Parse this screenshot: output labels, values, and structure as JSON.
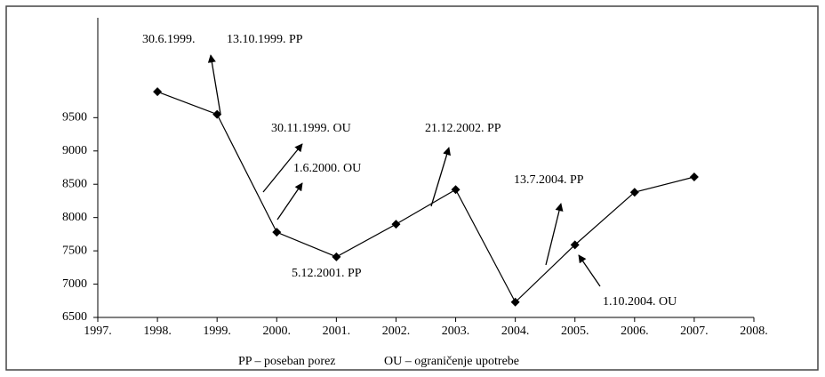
{
  "chart_data": {
    "type": "line",
    "x": [
      1998,
      1999,
      2000,
      2001,
      2002,
      2003,
      2004,
      2005,
      2006,
      2007
    ],
    "series": [
      {
        "color": "#000000",
        "values": [
          9890,
          9550,
          7780,
          7410,
          7900,
          8420,
          6730,
          7590,
          8380,
          8610
        ]
      }
    ],
    "xlim": [
      1997,
      2008
    ],
    "xticks": [
      {
        "value": 1997,
        "label": "1997."
      },
      {
        "value": 1998,
        "label": "1998."
      },
      {
        "value": 1999,
        "label": "1999."
      },
      {
        "value": 2000,
        "label": "2000."
      },
      {
        "value": 2001,
        "label": "2001."
      },
      {
        "value": 2002,
        "label": "2002."
      },
      {
        "value": 2003,
        "label": "2003."
      },
      {
        "value": 2004,
        "label": "2004."
      },
      {
        "value": 2005,
        "label": "2005."
      },
      {
        "value": 2006,
        "label": "2006."
      },
      {
        "value": 2007,
        "label": "2007."
      },
      {
        "value": 2008,
        "label": "2008."
      }
    ],
    "ylim": [
      6500,
      11000
    ],
    "yticks": [
      6500,
      7000,
      7500,
      8000,
      8500,
      9000,
      9500
    ],
    "annotations": [
      "30.6.1999.",
      "13.10.1999. PP",
      "30.11.1999. OU",
      "1.6.2000. OU",
      "21.12.2002. PP",
      "5.12.2001. PP",
      "13.7.2004. PP",
      "1.10.2004. OU"
    ],
    "notes": [
      "PP – poseban porez",
      "OU – ograničenje upotrebe"
    ]
  }
}
